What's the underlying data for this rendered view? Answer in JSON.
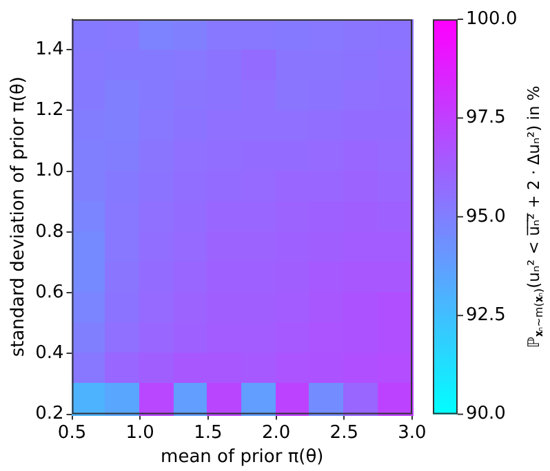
{
  "chart_data": {
    "type": "heatmap",
    "xlabel": "mean of prior π(θ)",
    "ylabel": "standard deviation of prior π(θ)",
    "clabel": "ℙ$_{𝐱ₙ∼m(𝐱ₙ)}$(uₙ² < u̅ₙ̅²̅ + 2 · Δuₙ²) in %",
    "xlim": [
      0.5,
      3.0
    ],
    "ylim": [
      0.2,
      1.5
    ],
    "xticks": [
      0.5,
      {
        "value": 1,
        "label": "1.0"
      },
      1.5,
      {
        "value": 2,
        "label": "2.0"
      },
      2.5,
      {
        "value": 3,
        "label": "3.0"
      }
    ],
    "yticks": [
      0.2,
      0.4,
      0.6,
      0.8,
      {
        "value": 1,
        "label": "1.0"
      },
      1.2,
      1.4
    ],
    "clim": [
      90,
      100
    ],
    "cticks": [
      {
        "value": 90,
        "label": "90.0"
      },
      92.5,
      {
        "value": 95,
        "label": "95.0"
      },
      97.5,
      {
        "value": 100,
        "label": "100.0"
      }
    ],
    "cells": [
      [
        95.2,
        95.3,
        94.9,
        95.0,
        95.3,
        95.3,
        95.2,
        95.3,
        95.4,
        95.5
      ],
      [
        95.3,
        95.2,
        95.2,
        95.3,
        95.5,
        95.8,
        95.4,
        95.4,
        95.5,
        95.6
      ],
      [
        95.2,
        95.0,
        95.2,
        95.4,
        95.5,
        95.6,
        95.4,
        95.5,
        95.6,
        95.7
      ],
      [
        95.1,
        95.0,
        95.3,
        95.5,
        95.6,
        95.6,
        95.6,
        95.7,
        95.8,
        95.8
      ],
      [
        95.0,
        95.1,
        95.4,
        95.6,
        95.7,
        95.8,
        95.8,
        95.9,
        96.0,
        95.9
      ],
      [
        95.0,
        95.2,
        95.5,
        95.7,
        95.8,
        95.9,
        96.0,
        96.0,
        96.1,
        96.0
      ],
      [
        94.8,
        95.3,
        95.6,
        95.8,
        96.0,
        96.0,
        96.1,
        96.2,
        96.3,
        96.2
      ],
      [
        94.6,
        95.3,
        95.7,
        95.9,
        96.1,
        96.1,
        96.2,
        96.3,
        96.4,
        96.4
      ],
      [
        94.6,
        95.4,
        95.8,
        96.0,
        96.2,
        96.2,
        96.3,
        96.5,
        96.6,
        96.6
      ],
      [
        94.8,
        95.5,
        95.9,
        96.1,
        96.3,
        96.3,
        96.4,
        96.6,
        96.8,
        96.9
      ],
      [
        95.0,
        95.6,
        96.0,
        96.2,
        96.4,
        96.4,
        96.5,
        96.7,
        96.8,
        96.9
      ],
      [
        95.3,
        96.0,
        96.3,
        96.6,
        96.6,
        96.5,
        96.7,
        96.8,
        96.9,
        97.0
      ],
      [
        93.0,
        93.5,
        97.2,
        93.8,
        97.3,
        93.8,
        97.4,
        94.5,
        96.0,
        97.4
      ]
    ]
  }
}
